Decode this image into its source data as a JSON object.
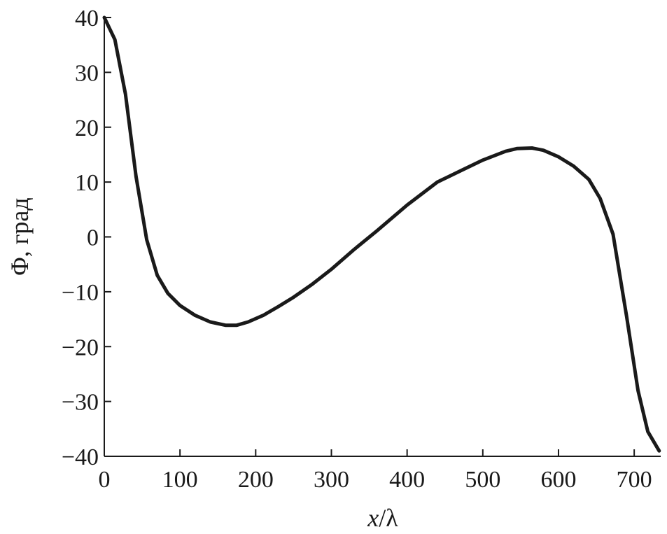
{
  "chart_data": {
    "type": "line",
    "title": "",
    "xlabel_var": "x",
    "xlabel_rest": "/λ",
    "ylabel": "Φ, град",
    "xlim": [
      0,
      735
    ],
    "ylim": [
      -40,
      40
    ],
    "x_ticks": [
      0,
      100,
      200,
      300,
      400,
      500,
      600,
      700
    ],
    "x_tick_labels": [
      "0",
      "100",
      "200",
      "300",
      "400",
      "500",
      "600",
      "700"
    ],
    "y_ticks": [
      40,
      30,
      20,
      10,
      0,
      -10,
      -20,
      -30,
      -40
    ],
    "y_tick_labels": [
      "40",
      "30",
      "20",
      "10",
      "0",
      "−10",
      "−20",
      "−30",
      "−40"
    ],
    "grid": false,
    "series": [
      {
        "x": [
          0,
          14,
          28,
          42,
          56,
          70,
          84,
          100,
          120,
          140,
          160,
          175,
          190,
          210,
          230,
          250,
          275,
          300,
          330,
          360,
          400,
          440,
          470,
          500,
          530,
          545,
          565,
          580,
          600,
          620,
          640,
          655,
          672,
          690,
          705,
          718,
          733
        ],
        "y": [
          40,
          36,
          26,
          11,
          -0.5,
          -7,
          -10.3,
          -12.5,
          -14.3,
          -15.5,
          -16.1,
          -16.1,
          -15.5,
          -14.3,
          -12.7,
          -11,
          -8.6,
          -5.9,
          -2.3,
          1.1,
          5.8,
          10,
          12,
          14,
          15.6,
          16.1,
          16.2,
          15.8,
          14.6,
          12.9,
          10.5,
          7,
          0.5,
          -14.5,
          -28,
          -35.5,
          -39
        ]
      }
    ]
  }
}
